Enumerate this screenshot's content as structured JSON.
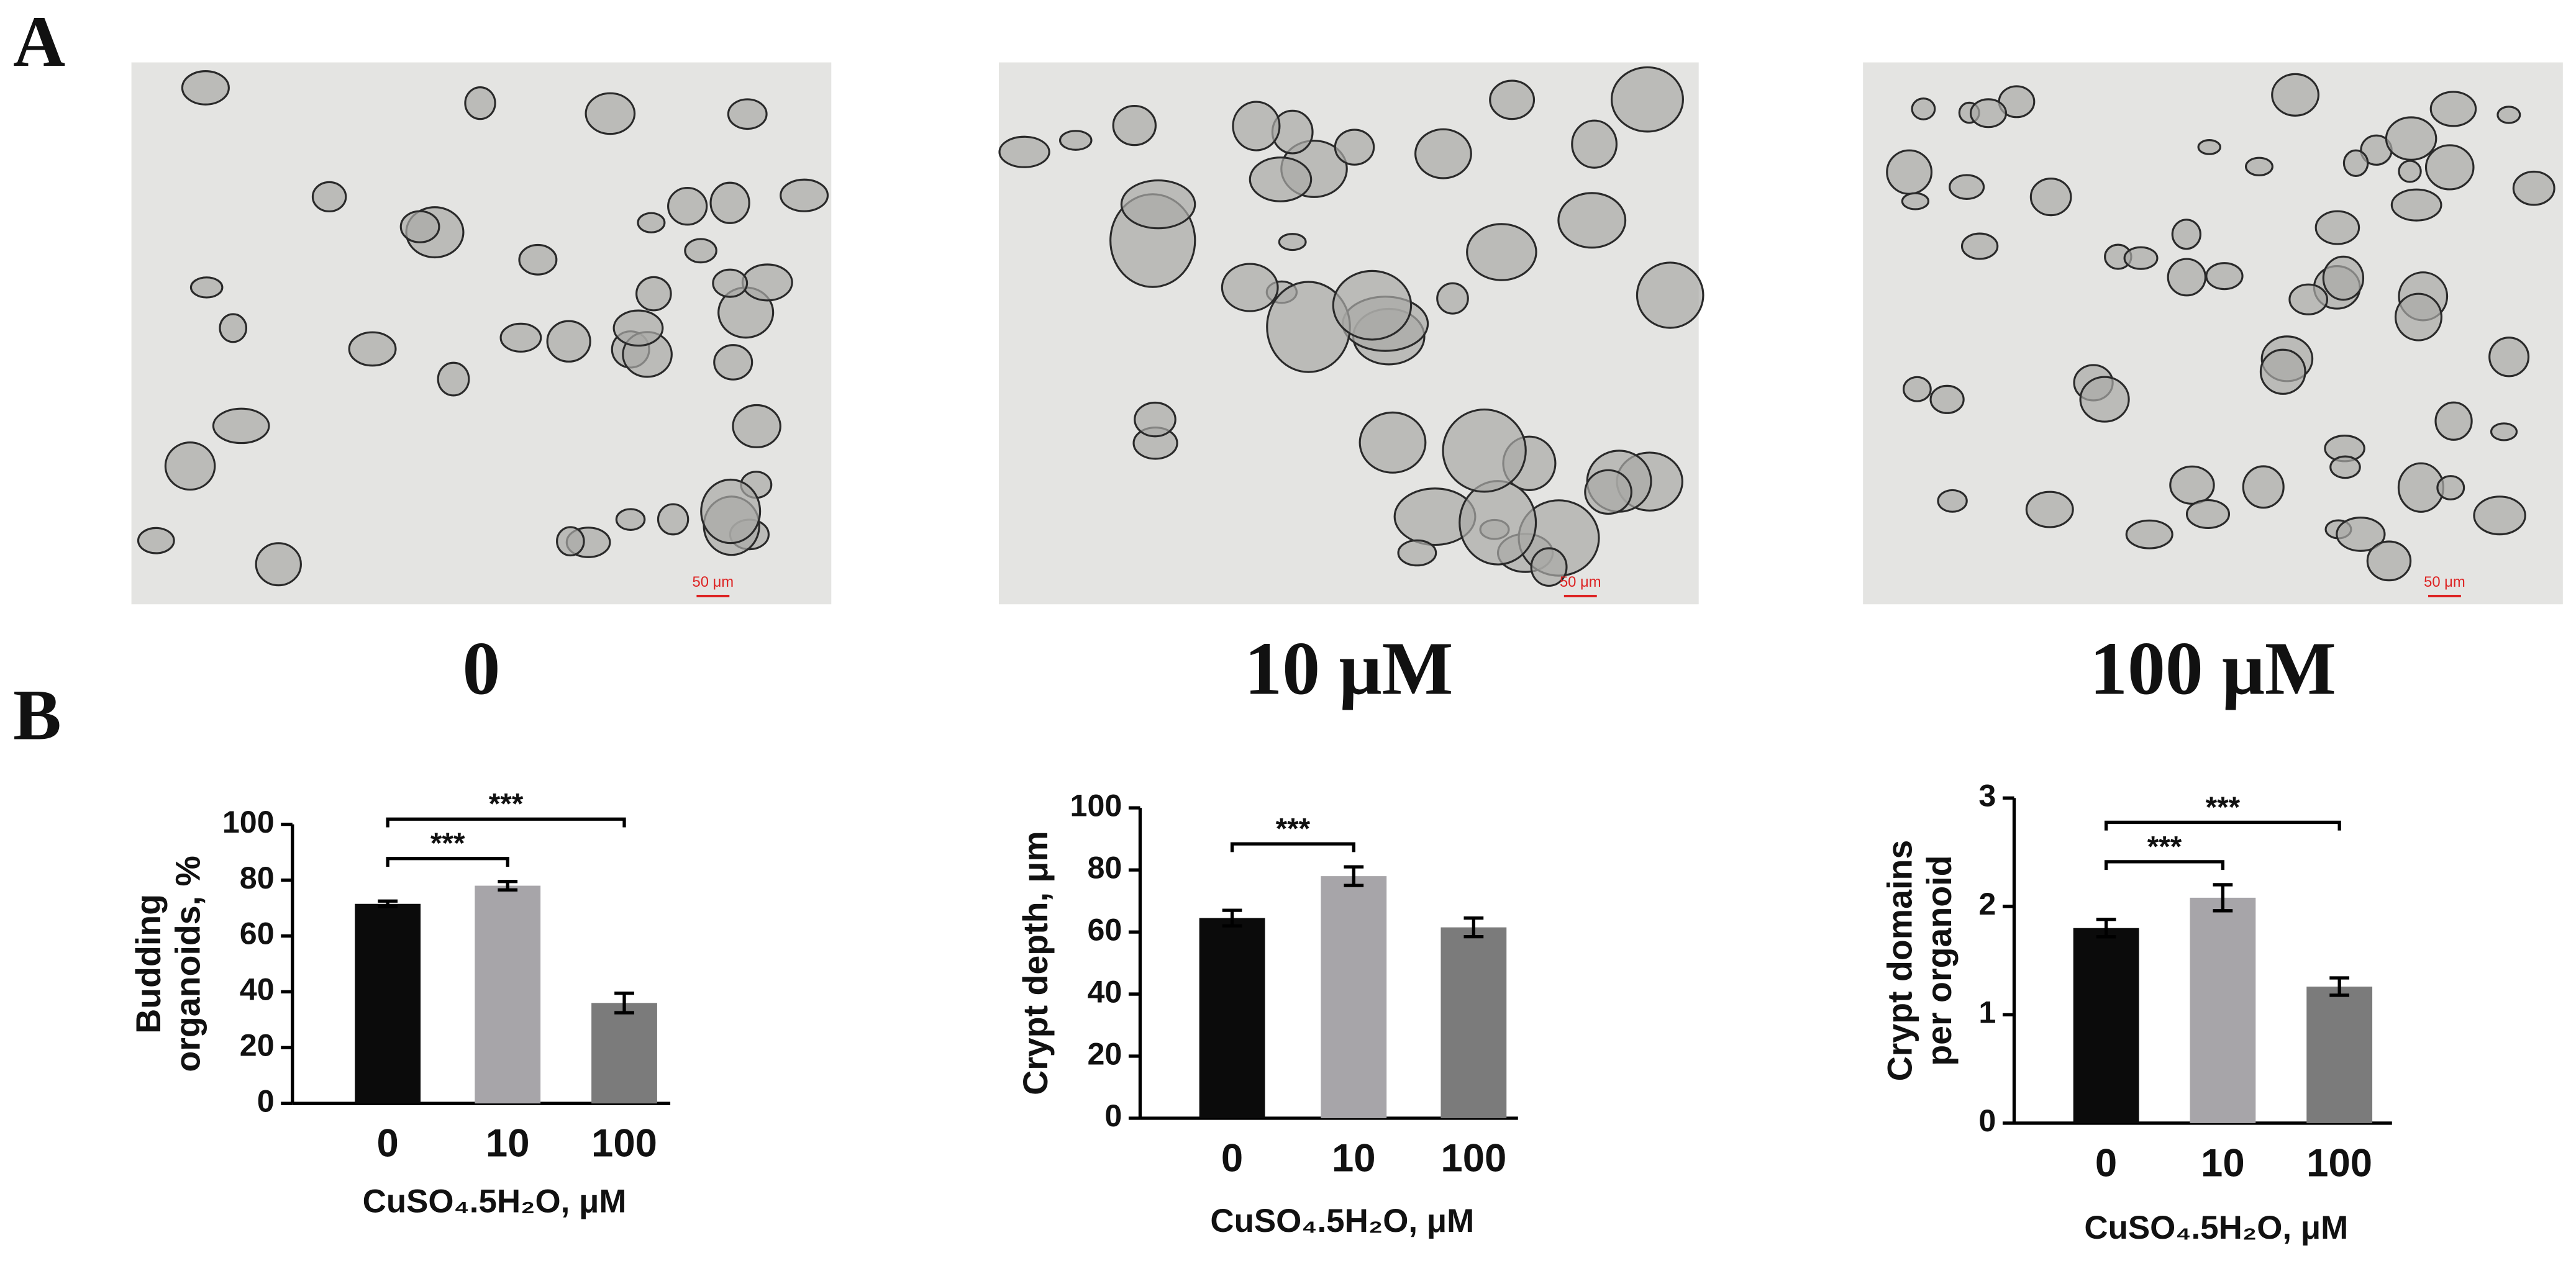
{
  "panels": {
    "a": "A",
    "b": "B"
  },
  "images": [
    {
      "caption": "0",
      "scale_bar": "50 μm"
    },
    {
      "caption": "10 μM",
      "scale_bar": "50 μm"
    },
    {
      "caption": "100 μM",
      "scale_bar": "50 μm"
    }
  ],
  "chart_data": [
    {
      "type": "bar",
      "ylabel": [
        "Budding",
        "organoids, %"
      ],
      "xlabel": "CuSO₄.5H₂O, μM",
      "categories": [
        "0",
        "10",
        "100"
      ],
      "values": [
        71.5,
        78,
        36
      ],
      "errors": [
        1,
        1.5,
        3.5
      ],
      "colors": [
        "#0b0b0b",
        "#a7a5a9",
        "#7b7b7b"
      ],
      "ylim": [
        0,
        100
      ],
      "yticks": [
        0,
        20,
        40,
        60,
        80,
        100
      ],
      "annotations": [
        {
          "text": "***",
          "between": [
            "0",
            "10"
          ]
        },
        {
          "text": "***",
          "between": [
            "0",
            "100"
          ]
        }
      ]
    },
    {
      "type": "bar",
      "ylabel": [
        "Crypt depth, μm"
      ],
      "xlabel": "CuSO₄.5H₂O, μM",
      "categories": [
        "0",
        "10",
        "100"
      ],
      "values": [
        64.5,
        78,
        61.5
      ],
      "errors": [
        2.5,
        3,
        3
      ],
      "colors": [
        "#0b0b0b",
        "#a7a5a9",
        "#7b7b7b"
      ],
      "ylim": [
        0,
        100
      ],
      "yticks": [
        0,
        20,
        40,
        60,
        80,
        100
      ],
      "annotations": [
        {
          "text": "***",
          "between": [
            "0",
            "10"
          ]
        }
      ]
    },
    {
      "type": "bar",
      "ylabel": [
        "Crypt domains",
        "per organoid"
      ],
      "xlabel": "CuSO₄.5H₂O, μM",
      "categories": [
        "0",
        "10",
        "100"
      ],
      "values": [
        1.8,
        2.08,
        1.26
      ],
      "errors": [
        0.08,
        0.12,
        0.08
      ],
      "colors": [
        "#0b0b0b",
        "#a7a5a9",
        "#7b7b7b"
      ],
      "ylim": [
        0,
        3
      ],
      "yticks": [
        0,
        1,
        2,
        3
      ],
      "annotations": [
        {
          "text": "***",
          "between": [
            "0",
            "10"
          ]
        },
        {
          "text": "***",
          "between": [
            "0",
            "100"
          ]
        }
      ]
    }
  ]
}
